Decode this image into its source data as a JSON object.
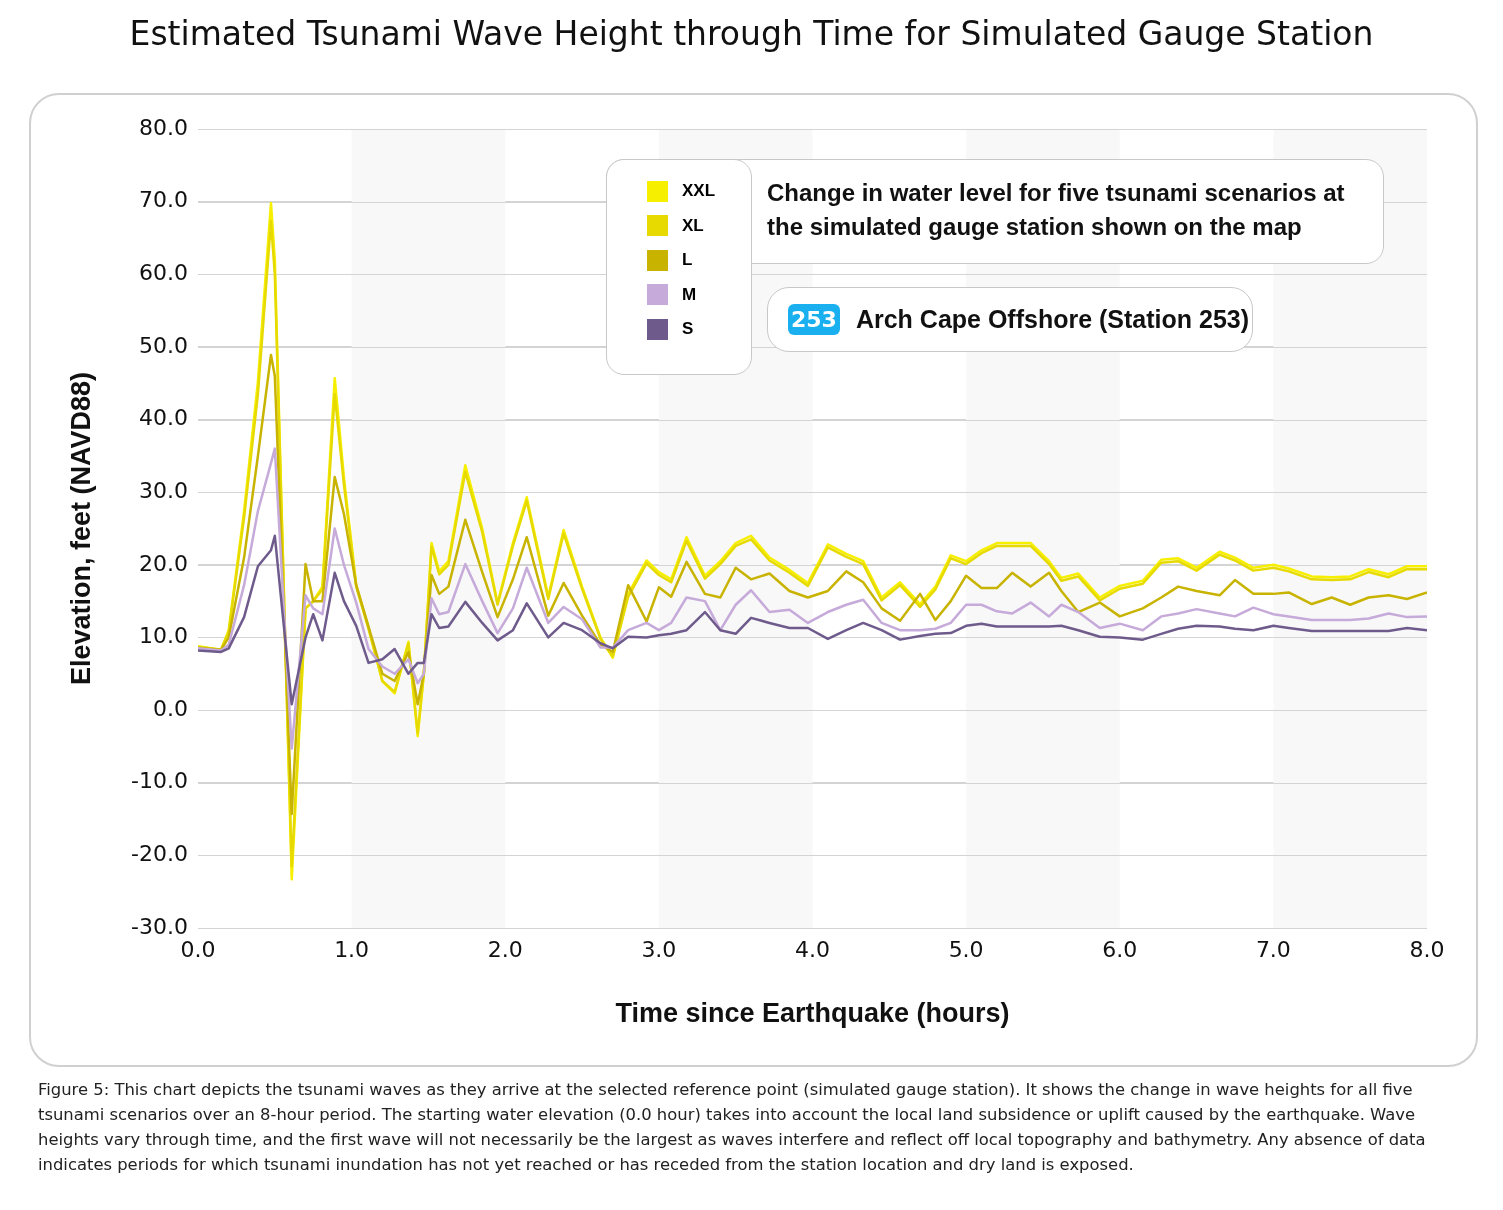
{
  "chart_data": {
    "type": "line",
    "title": "Estimated Tsunami Wave Height through Time for Simulated Gauge Station",
    "xlabel": "Time since Earthquake (hours)",
    "ylabel": "Elevation, feet (NAVD88)",
    "annotations": [
      "Change in water level for five tsunami scenarios at the simulated gauge station shown on the map",
      "253",
      "Arch Cape Offshore (Station 253)",
      "Figure 5: This chart depicts the tsunami waves as they arrive at the selected reference point (simulated gauge station). It shows the change in wave heights for all five tsunami scenarios over an 8-hour period. The starting water elevation (0.0 hour) takes into account the local land subsidence or uplift caused by the earthquake. Wave heights vary through time, and the first wave will not necessarily be the largest as waves interfere and reflect off local topography and bathymetry. Any absence of data indicates periods for which tsunami inundation has not yet reached or has receded from the station location and dry land is exposed."
    ],
    "x": [
      0,
      0.15,
      0.2,
      0.3,
      0.39,
      0.475,
      0.5,
      0.61,
      0.7,
      0.75,
      0.81,
      0.89,
      0.95,
      1.03,
      1.11,
      1.2,
      1.28,
      1.37,
      1.43,
      1.47,
      1.52,
      1.57,
      1.63,
      1.74,
      1.85,
      1.95,
      2.05,
      2.14,
      2.28,
      2.38,
      2.5,
      2.62,
      2.7,
      2.8,
      2.92,
      3.0,
      3.08,
      3.18,
      3.3,
      3.4,
      3.5,
      3.6,
      3.72,
      3.85,
      3.97,
      4.1,
      4.22,
      4.33,
      4.45,
      4.57,
      4.7,
      4.8,
      4.9,
      5.0,
      5.1,
      5.2,
      5.3,
      5.42,
      5.54,
      5.62,
      5.73,
      5.87,
      6.0,
      6.15,
      6.27,
      6.38,
      6.5,
      6.65,
      6.75,
      6.87,
      7.0,
      7.1,
      7.25,
      7.38,
      7.5,
      7.62,
      7.75,
      7.87,
      8.0
    ],
    "series": [
      {
        "name": "XXL",
        "color": "#f7ef00",
        "values": [
          8.8,
          8.3,
          11,
          27.4,
          45.2,
          69.8,
          62,
          -23.3,
          14,
          15,
          17,
          45.7,
          32,
          17.2,
          11.3,
          4,
          2.3,
          9.4,
          -3.6,
          5,
          23,
          19.1,
          20.5,
          33.7,
          25,
          14.7,
          23,
          29.3,
          15.6,
          24.8,
          17,
          10,
          7.2,
          16,
          20.6,
          19,
          18,
          23.8,
          18.5,
          20.5,
          23,
          24,
          21,
          19.3,
          17.5,
          22.8,
          21.5,
          20.5,
          15.5,
          17.6,
          14.6,
          17,
          21.3,
          20.5,
          22,
          23,
          23,
          23,
          20.5,
          18.2,
          18.8,
          15.5,
          17.1,
          17.8,
          20.7,
          20.9,
          19.6,
          21.8,
          21,
          19.6,
          20,
          19.5,
          18.4,
          18.3,
          18.4,
          19.4,
          18.7,
          19.8,
          19.8
        ]
      },
      {
        "name": "XL",
        "color": "#e6da00",
        "values": [
          8.7,
          8.3,
          10.8,
          26.5,
          43.5,
          67.3,
          60,
          -21.5,
          14,
          15,
          16.6,
          43.5,
          31,
          17,
          11.2,
          4,
          2.5,
          9.2,
          -3.2,
          5,
          22.5,
          18.7,
          20,
          32.8,
          24.5,
          14.5,
          22.6,
          28.8,
          15.3,
          24.3,
          16.7,
          9.8,
          7.4,
          15.6,
          20.2,
          18.6,
          17.6,
          23.3,
          18.1,
          20.1,
          22.6,
          23.5,
          20.6,
          18.9,
          17.1,
          22.4,
          21.1,
          20.1,
          15.1,
          17.2,
          14.2,
          16.6,
          20.9,
          20.1,
          21.6,
          22.6,
          22.6,
          22.6,
          20.1,
          17.8,
          18.4,
          15.1,
          16.7,
          17.4,
          20.3,
          20.5,
          19.2,
          21.4,
          20.6,
          19.2,
          19.6,
          19.1,
          18,
          17.9,
          18,
          19,
          18.3,
          19.4,
          19.4
        ]
      },
      {
        "name": "L",
        "color": "#c8b400",
        "values": [
          8.6,
          8.3,
          10,
          21,
          35,
          48.9,
          46,
          -14.3,
          20.1,
          15,
          15,
          32.1,
          27,
          17.2,
          11.5,
          5,
          4,
          8,
          0.8,
          5,
          18.6,
          16,
          17,
          26.2,
          19,
          12.8,
          18,
          23.8,
          13,
          17.5,
          13,
          9,
          8,
          17.2,
          12.2,
          16.9,
          15.6,
          20.4,
          16,
          15.5,
          19.6,
          18,
          18.8,
          16.4,
          15.5,
          16.4,
          19.1,
          17.6,
          14,
          12.3,
          16,
          12.4,
          15,
          18.5,
          16.8,
          16.8,
          18.9,
          17,
          18.9,
          16.4,
          13.5,
          14.8,
          12.9,
          14,
          15.5,
          17,
          16.4,
          15.8,
          17.9,
          16,
          16,
          16.2,
          14.6,
          15.5,
          14.5,
          15.5,
          15.8,
          15.3,
          16.2
        ]
      },
      {
        "name": "M",
        "color": "#c6aad9",
        "values": [
          8.5,
          8.2,
          9,
          17.2,
          27.4,
          34,
          36,
          -5.3,
          15.8,
          14,
          13.2,
          25,
          20,
          14.8,
          8.4,
          6,
          5,
          7,
          3.7,
          5,
          15.4,
          13.2,
          13.5,
          20.1,
          15,
          10.6,
          14,
          19.6,
          12,
          14.2,
          12.5,
          8.6,
          8.6,
          11,
          12,
          11,
          12,
          15.5,
          15,
          11,
          14.5,
          16.5,
          13.5,
          13.8,
          12,
          13.5,
          14.5,
          15.2,
          12,
          11,
          11,
          11.2,
          12,
          14.5,
          14.5,
          13.6,
          13.3,
          14.8,
          12.9,
          14.5,
          13.5,
          11.3,
          11.9,
          11,
          12.9,
          13.3,
          13.9,
          13.3,
          12.9,
          14.1,
          13.2,
          12.9,
          12.4,
          12.4,
          12.4,
          12.6,
          13.3,
          12.8,
          12.9
        ]
      },
      {
        "name": "S",
        "color": "#6e5b8c",
        "values": [
          8.2,
          8,
          8.5,
          12.8,
          19.8,
          22,
          24,
          0.8,
          10,
          13.2,
          9.6,
          18.9,
          15,
          11.6,
          6.5,
          7,
          8.4,
          5,
          6.5,
          6.5,
          13.2,
          11.3,
          11.5,
          14.9,
          12,
          9.6,
          11,
          14.7,
          10,
          12,
          11,
          9.2,
          8.5,
          10.1,
          10,
          10.3,
          10.5,
          11,
          13.5,
          11,
          10.5,
          12.7,
          12,
          11.3,
          11.3,
          9.8,
          11,
          12,
          11,
          9.7,
          10.2,
          10.5,
          10.6,
          11.6,
          11.9,
          11.5,
          11.5,
          11.5,
          11.5,
          11.6,
          11,
          10.1,
          10,
          9.7,
          10.5,
          11.2,
          11.6,
          11.5,
          11.2,
          11,
          11.6,
          11.3,
          10.9,
          10.9,
          10.9,
          10.9,
          10.9,
          11.3,
          11
        ]
      }
    ],
    "xlim": [
      0,
      8
    ],
    "xticks": [
      {
        "value": 0,
        "label": "0.0"
      },
      {
        "value": 1,
        "label": "1.0"
      },
      {
        "value": 2,
        "label": "2.0"
      },
      {
        "value": 3,
        "label": "3.0"
      },
      {
        "value": 4,
        "label": "4.0"
      },
      {
        "value": 5,
        "label": "5.0"
      },
      {
        "value": 6,
        "label": "6.0"
      },
      {
        "value": 7,
        "label": "7.0"
      },
      {
        "value": 8,
        "label": "8.0"
      }
    ],
    "ylim": [
      -30,
      80
    ],
    "yticks": [
      {
        "value": -30,
        "label": "-30.0"
      },
      {
        "value": -20,
        "label": "-20.0"
      },
      {
        "value": -10,
        "label": "-10.0"
      },
      {
        "value": 0,
        "label": "0.0"
      },
      {
        "value": 10,
        "label": "10.0"
      },
      {
        "value": 20,
        "label": "20.0"
      },
      {
        "value": 30,
        "label": "30.0"
      },
      {
        "value": 40,
        "label": "40.0"
      },
      {
        "value": 50,
        "label": "50.0"
      },
      {
        "value": 60,
        "label": "60.0"
      },
      {
        "value": 70,
        "label": "70.0"
      },
      {
        "value": 80,
        "label": "80.0"
      }
    ],
    "bands": [
      {
        "axis": "x",
        "from": 1,
        "to": 2,
        "color": "#f8f8f8"
      },
      {
        "axis": "x",
        "from": 3,
        "to": 4,
        "color": "#f8f8f8"
      },
      {
        "axis": "x",
        "from": 5,
        "to": 6,
        "color": "#f8f8f8"
      },
      {
        "axis": "x",
        "from": 7,
        "to": 8,
        "color": "#f8f8f8"
      }
    ],
    "grid": "y",
    "legend": "top"
  }
}
